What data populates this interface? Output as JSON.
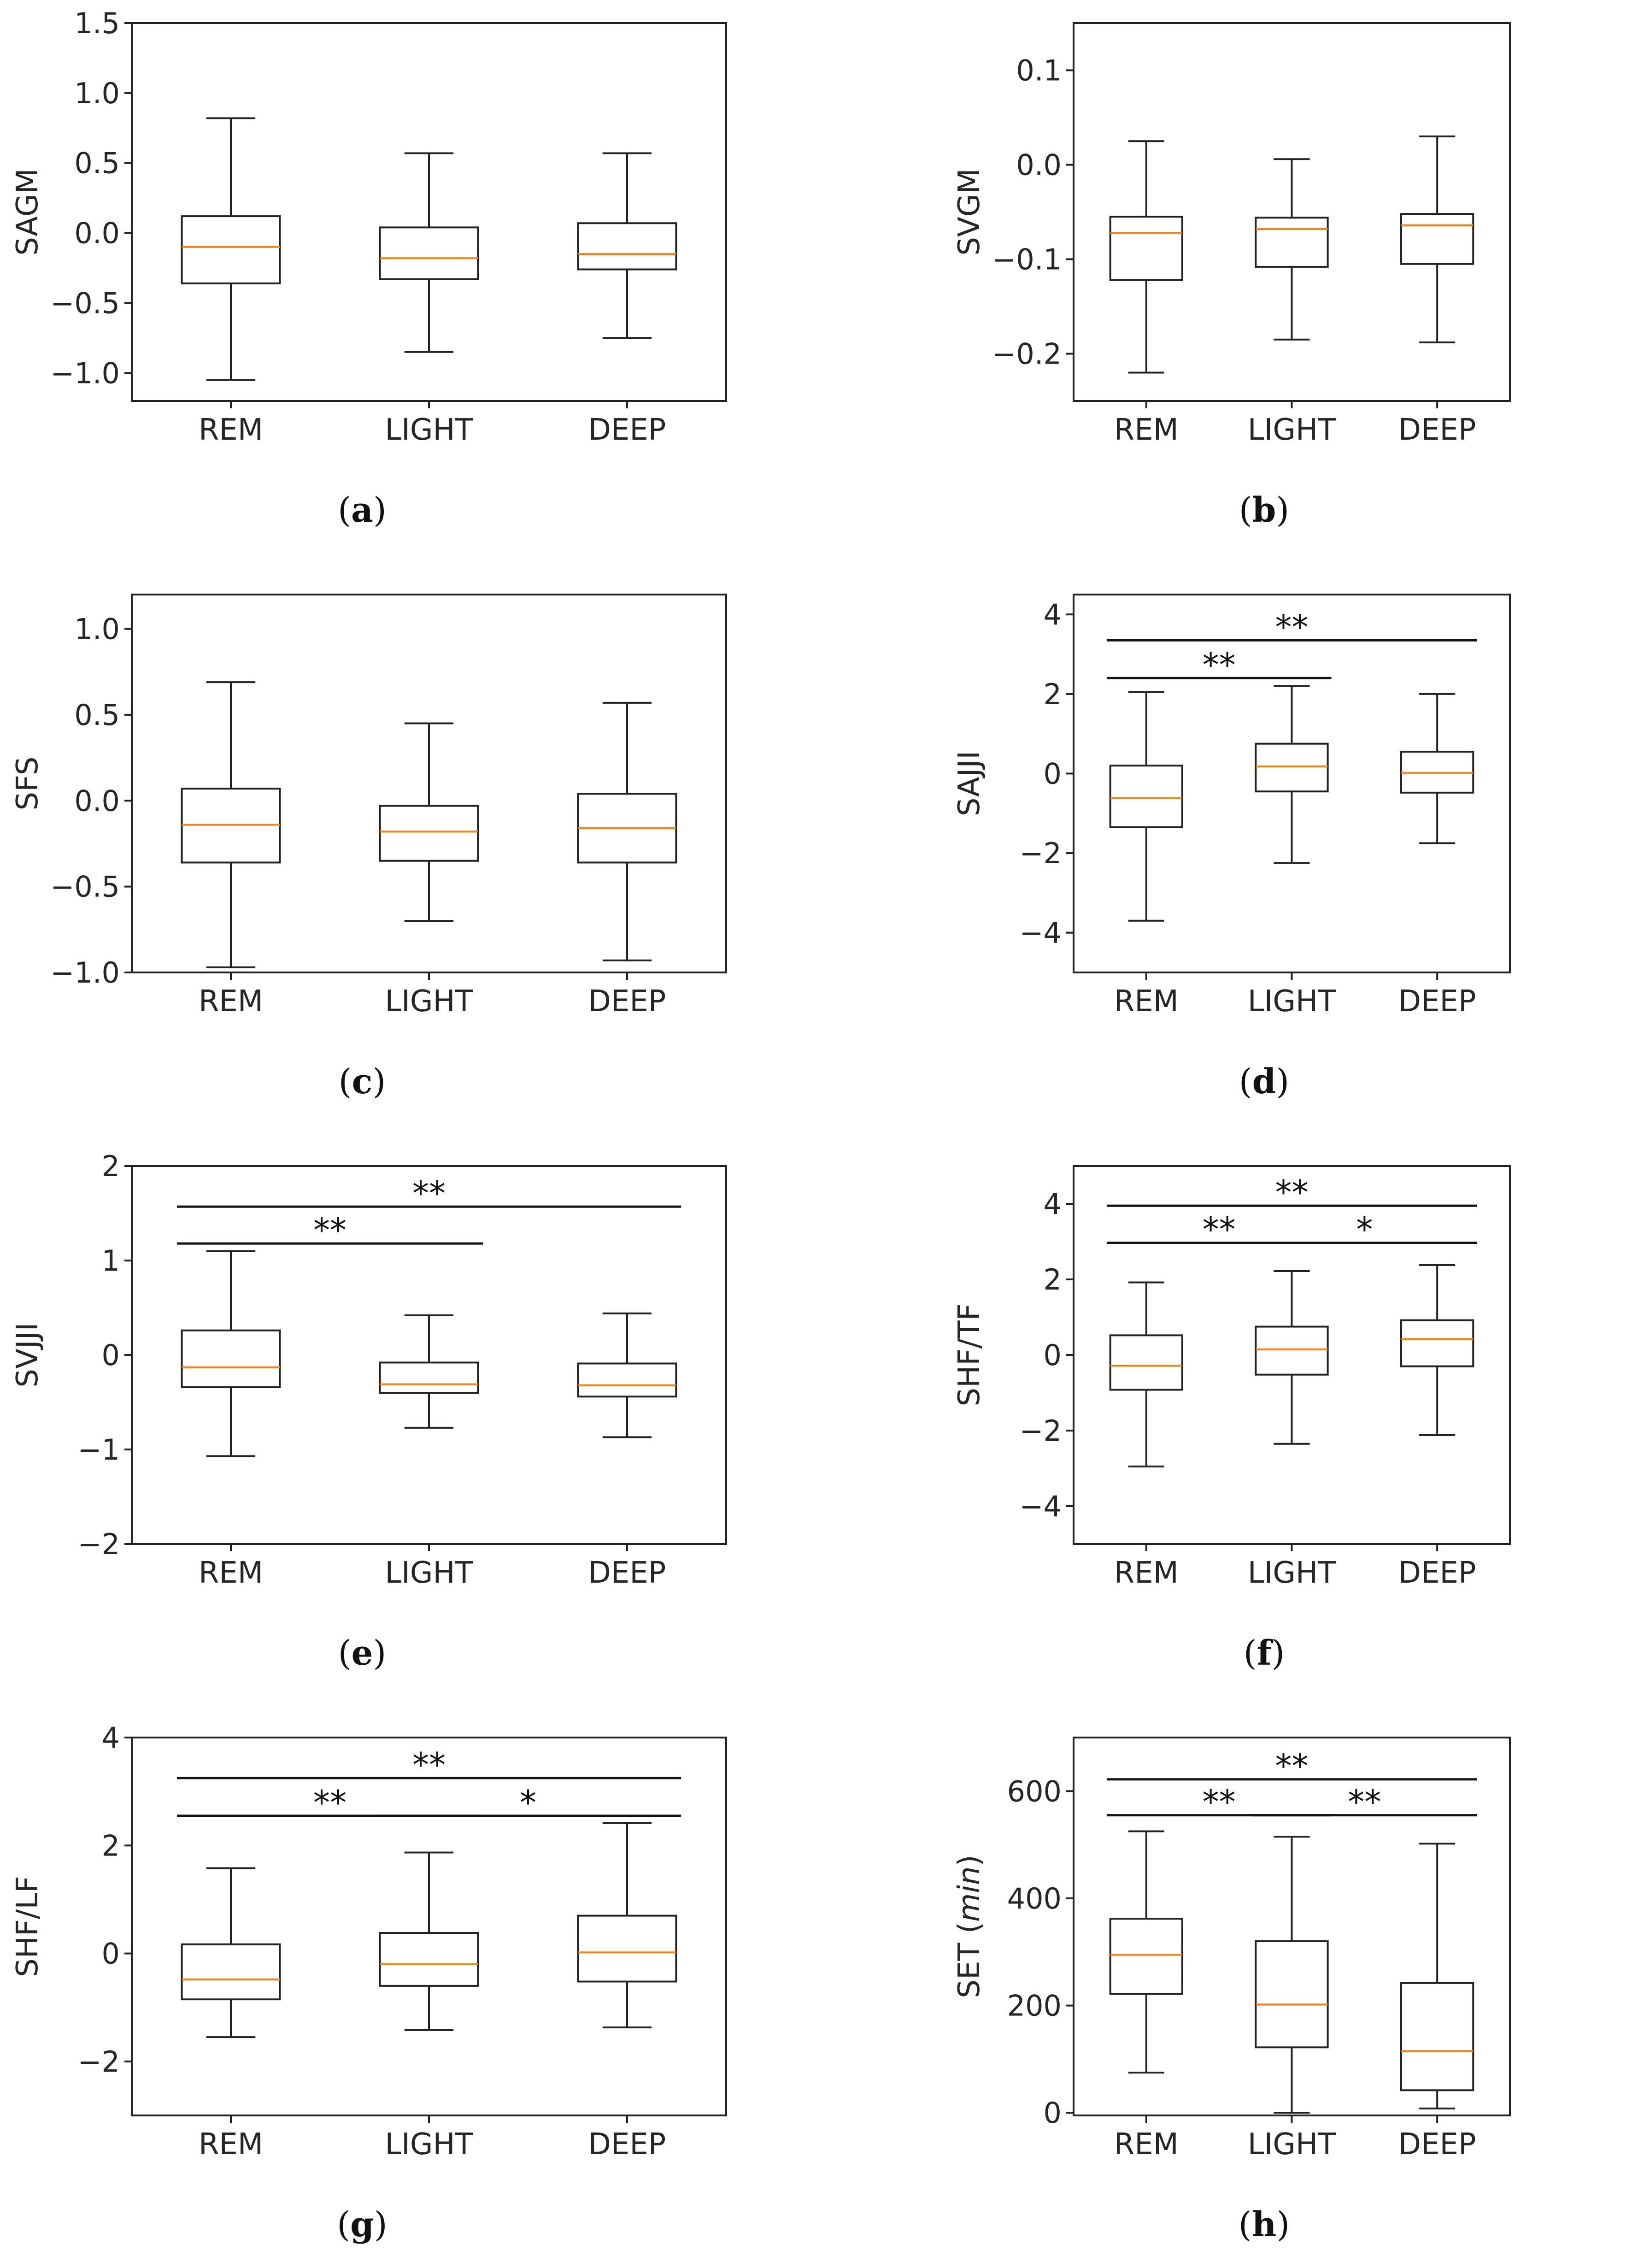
{
  "chart_data": [
    {
      "id": "a",
      "type": "box",
      "title": "",
      "xlabel": "",
      "ylabel": "SAGM",
      "categories": [
        "REM",
        "LIGHT",
        "DEEP"
      ],
      "ylim": [
        -1.2,
        1.5
      ],
      "yticks": [
        -1.0,
        -0.5,
        0.0,
        0.5,
        1.0,
        1.5
      ],
      "ytick_labels": [
        "−1.0",
        "−0.5",
        "0.0",
        "0.5",
        "1.0",
        "1.5"
      ],
      "boxes": [
        {
          "whisker_low": -1.05,
          "q1": -0.36,
          "median": -0.1,
          "q3": 0.12,
          "whisker_high": 0.82
        },
        {
          "whisker_low": -0.85,
          "q1": -0.33,
          "median": -0.18,
          "q3": 0.04,
          "whisker_high": 0.57
        },
        {
          "whisker_low": -0.75,
          "q1": -0.26,
          "median": -0.15,
          "q3": 0.07,
          "whisker_high": 0.57
        }
      ],
      "significance": [],
      "caption": {
        "open": "(",
        "letter": "a",
        "close": ")"
      }
    },
    {
      "id": "b",
      "type": "box",
      "title": "",
      "xlabel": "",
      "ylabel": "SVGM",
      "categories": [
        "REM",
        "LIGHT",
        "DEEP"
      ],
      "ylim": [
        -0.25,
        0.15
      ],
      "yticks": [
        -0.2,
        -0.1,
        0.0,
        0.1
      ],
      "ytick_labels": [
        "−0.2",
        "−0.1",
        "0.0",
        "0.1"
      ],
      "boxes": [
        {
          "whisker_low": -0.22,
          "q1": -0.122,
          "median": -0.072,
          "q3": -0.055,
          "whisker_high": 0.025
        },
        {
          "whisker_low": -0.185,
          "q1": -0.108,
          "median": -0.068,
          "q3": -0.056,
          "whisker_high": 0.006
        },
        {
          "whisker_low": -0.188,
          "q1": -0.105,
          "median": -0.064,
          "q3": -0.052,
          "whisker_high": 0.03
        }
      ],
      "significance": [],
      "caption": {
        "open": "(",
        "letter": "b",
        "close": ")"
      }
    },
    {
      "id": "c",
      "type": "box",
      "title": "",
      "xlabel": "",
      "ylabel": "SFS",
      "categories": [
        "REM",
        "LIGHT",
        "DEEP"
      ],
      "ylim": [
        -1.0,
        1.2
      ],
      "yticks": [
        -1.0,
        -0.5,
        0.0,
        0.5,
        1.0
      ],
      "ytick_labels": [
        "−1.0",
        "−0.5",
        "0.0",
        "0.5",
        "1.0"
      ],
      "boxes": [
        {
          "whisker_low": -0.97,
          "q1": -0.36,
          "median": -0.14,
          "q3": 0.07,
          "whisker_high": 0.69
        },
        {
          "whisker_low": -0.7,
          "q1": -0.35,
          "median": -0.18,
          "q3": -0.03,
          "whisker_high": 0.45
        },
        {
          "whisker_low": -0.93,
          "q1": -0.36,
          "median": -0.16,
          "q3": 0.04,
          "whisker_high": 0.57
        }
      ],
      "significance": [],
      "caption": {
        "open": "(",
        "letter": "c",
        "close": ")"
      }
    },
    {
      "id": "d",
      "type": "box",
      "title": "",
      "xlabel": "",
      "ylabel": "SAJJI",
      "categories": [
        "REM",
        "LIGHT",
        "DEEP"
      ],
      "ylim": [
        -5.0,
        4.5
      ],
      "yticks": [
        -4,
        -2,
        0,
        2,
        4
      ],
      "ytick_labels": [
        "−4",
        "−2",
        "0",
        "2",
        "4"
      ],
      "boxes": [
        {
          "whisker_low": -3.7,
          "q1": -1.35,
          "median": -0.62,
          "q3": 0.2,
          "whisker_high": 2.05
        },
        {
          "whisker_low": -2.25,
          "q1": -0.45,
          "median": 0.18,
          "q3": 0.75,
          "whisker_high": 2.2
        },
        {
          "whisker_low": -1.75,
          "q1": -0.48,
          "median": 0.02,
          "q3": 0.55,
          "whisker_high": 2.0
        }
      ],
      "significance": [
        {
          "from": 0,
          "to": 1,
          "y": 2.4,
          "label": "**"
        },
        {
          "from": 0,
          "to": 2,
          "y": 3.35,
          "label": "**"
        }
      ],
      "caption": {
        "open": "(",
        "letter": "d",
        "close": ")"
      }
    },
    {
      "id": "e",
      "type": "box",
      "title": "",
      "xlabel": "",
      "ylabel": "SVJJI",
      "categories": [
        "REM",
        "LIGHT",
        "DEEP"
      ],
      "ylim": [
        -2.0,
        2.0
      ],
      "yticks": [
        -2,
        -1,
        0,
        1,
        2
      ],
      "ytick_labels": [
        "−2",
        "−1",
        "0",
        "1",
        "2"
      ],
      "boxes": [
        {
          "whisker_low": -1.07,
          "q1": -0.34,
          "median": -0.13,
          "q3": 0.26,
          "whisker_high": 1.1
        },
        {
          "whisker_low": -0.77,
          "q1": -0.4,
          "median": -0.31,
          "q3": -0.08,
          "whisker_high": 0.42
        },
        {
          "whisker_low": -0.87,
          "q1": -0.44,
          "median": -0.32,
          "q3": -0.09,
          "whisker_high": 0.44
        }
      ],
      "significance": [
        {
          "from": 0,
          "to": 1,
          "y": 1.18,
          "label": "**"
        },
        {
          "from": 0,
          "to": 2,
          "y": 1.57,
          "label": "**"
        }
      ],
      "caption": {
        "open": "(",
        "letter": "e",
        "close": ")"
      }
    },
    {
      "id": "f",
      "type": "box",
      "title": "",
      "xlabel": "",
      "ylabel": "SHF/TF",
      "categories": [
        "REM",
        "LIGHT",
        "DEEP"
      ],
      "ylim": [
        -5.0,
        5.0
      ],
      "yticks": [
        -4,
        -2,
        0,
        2,
        4
      ],
      "ytick_labels": [
        "−4",
        "−2",
        "0",
        "2",
        "4"
      ],
      "boxes": [
        {
          "whisker_low": -2.95,
          "q1": -0.92,
          "median": -0.28,
          "q3": 0.52,
          "whisker_high": 1.92
        },
        {
          "whisker_low": -2.35,
          "q1": -0.52,
          "median": 0.15,
          "q3": 0.75,
          "whisker_high": 2.22
        },
        {
          "whisker_low": -2.12,
          "q1": -0.3,
          "median": 0.42,
          "q3": 0.92,
          "whisker_high": 2.38
        }
      ],
      "significance": [
        {
          "from": 0,
          "to": 1,
          "y": 2.97,
          "label": "**"
        },
        {
          "from": 1,
          "to": 2,
          "y": 2.97,
          "label": "*"
        },
        {
          "from": 0,
          "to": 2,
          "y": 3.95,
          "label": "**"
        }
      ],
      "caption": {
        "open": "(",
        "letter": "f",
        "close": ")"
      }
    },
    {
      "id": "g",
      "type": "box",
      "title": "",
      "xlabel": "",
      "ylabel": "SHF/LF",
      "categories": [
        "REM",
        "LIGHT",
        "DEEP"
      ],
      "ylim": [
        -3.0,
        4.0
      ],
      "yticks": [
        -2,
        0,
        2,
        4
      ],
      "ytick_labels": [
        "−2",
        "0",
        "2",
        "4"
      ],
      "boxes": [
        {
          "whisker_low": -1.55,
          "q1": -0.85,
          "median": -0.48,
          "q3": 0.17,
          "whisker_high": 1.58
        },
        {
          "whisker_low": -1.42,
          "q1": -0.6,
          "median": -0.2,
          "q3": 0.38,
          "whisker_high": 1.87
        },
        {
          "whisker_low": -1.37,
          "q1": -0.52,
          "median": 0.02,
          "q3": 0.7,
          "whisker_high": 2.42
        }
      ],
      "significance": [
        {
          "from": 0,
          "to": 1,
          "y": 2.55,
          "label": "**"
        },
        {
          "from": 1,
          "to": 2,
          "y": 2.55,
          "label": "*"
        },
        {
          "from": 0,
          "to": 2,
          "y": 3.25,
          "label": "**"
        }
      ],
      "caption": {
        "open": "(",
        "letter": "g",
        "close": ")"
      }
    },
    {
      "id": "h",
      "type": "box",
      "title": "",
      "xlabel": "",
      "ylabel": "SET (min)",
      "ylabel_parts": {
        "main": "SET (",
        "italic": "min",
        "close": ")"
      },
      "categories": [
        "REM",
        "LIGHT",
        "DEEP"
      ],
      "ylim": [
        -5,
        700
      ],
      "yticks": [
        0,
        200,
        400,
        600
      ],
      "ytick_labels": [
        "0",
        "200",
        "400",
        "600"
      ],
      "boxes": [
        {
          "whisker_low": 75,
          "q1": 222,
          "median": 295,
          "q3": 362,
          "whisker_high": 525
        },
        {
          "whisker_low": 0,
          "q1": 122,
          "median": 202,
          "q3": 320,
          "whisker_high": 515
        },
        {
          "whisker_low": 8,
          "q1": 42,
          "median": 115,
          "q3": 242,
          "whisker_high": 502
        }
      ],
      "significance": [
        {
          "from": 0,
          "to": 1,
          "y": 555,
          "label": "**"
        },
        {
          "from": 1,
          "to": 2,
          "y": 555,
          "label": "**"
        },
        {
          "from": 0,
          "to": 2,
          "y": 622,
          "label": "**"
        }
      ],
      "caption": {
        "open": "(",
        "letter": "h",
        "close": ")"
      }
    }
  ]
}
